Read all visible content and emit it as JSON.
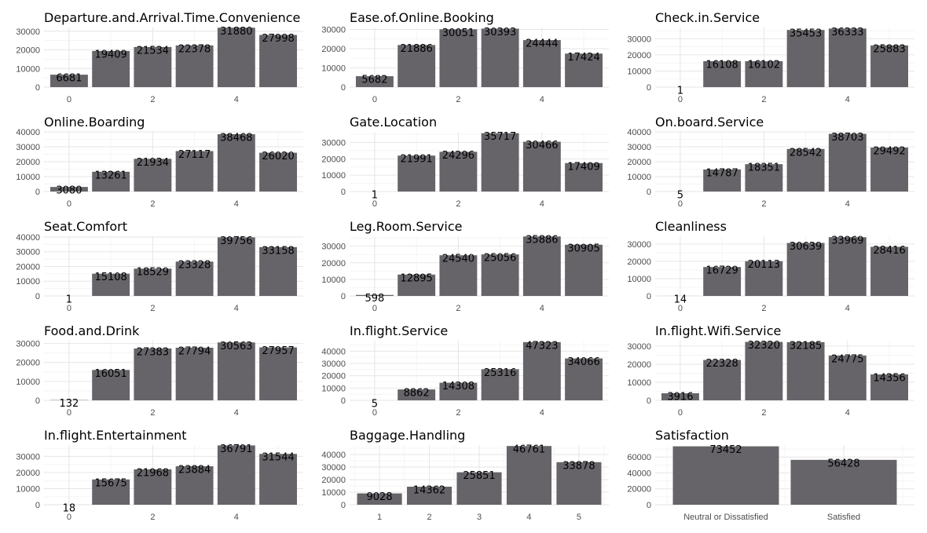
{
  "colors": {
    "bar": "#666469",
    "grid_major": "#e6e6e6",
    "grid_minor": "#f2f2f2",
    "text": "#000000",
    "tick_text": "#4d4d4d"
  },
  "chart_data": [
    {
      "type": "bar",
      "title": "Departure.and.Arrival.Time.Convenience",
      "xlabel": "",
      "ylabel": "",
      "x": [
        0,
        1,
        2,
        3,
        4,
        5
      ],
      "values": [
        6681,
        19409,
        21534,
        22378,
        31880,
        27998
      ],
      "x_ticks": [
        0,
        2,
        4
      ],
      "x_tick_labels": [
        "0",
        "2",
        "4"
      ],
      "xlim": [
        -0.6,
        5.6
      ],
      "y_ticks": [
        0,
        10000,
        20000,
        30000
      ],
      "ylim": [
        0,
        32000
      ],
      "grid": true
    },
    {
      "type": "bar",
      "title": "Ease.of.Online.Booking",
      "xlabel": "",
      "ylabel": "",
      "x": [
        0,
        1,
        2,
        3,
        4,
        5
      ],
      "values": [
        5682,
        21886,
        30051,
        30393,
        24444,
        17424
      ],
      "x_ticks": [
        0,
        2,
        4
      ],
      "x_tick_labels": [
        "0",
        "2",
        "4"
      ],
      "xlim": [
        -0.6,
        5.6
      ],
      "y_ticks": [
        0,
        10000,
        20000,
        30000
      ],
      "ylim": [
        0,
        31000
      ],
      "grid": true
    },
    {
      "type": "bar",
      "title": "Check.in.Service",
      "xlabel": "",
      "ylabel": "",
      "x": [
        0,
        1,
        2,
        3,
        4,
        5
      ],
      "values": [
        1,
        16108,
        16102,
        35453,
        36333,
        25883
      ],
      "x_ticks": [
        0,
        2,
        4
      ],
      "x_tick_labels": [
        "0",
        "2",
        "4"
      ],
      "xlim": [
        -0.6,
        5.6
      ],
      "y_ticks": [
        0,
        10000,
        20000,
        30000
      ],
      "ylim": [
        0,
        37000
      ],
      "grid": true
    },
    {
      "type": "bar",
      "title": "Online.Boarding",
      "xlabel": "",
      "ylabel": "",
      "x": [
        0,
        1,
        2,
        3,
        4,
        5
      ],
      "values": [
        3080,
        13261,
        21934,
        27117,
        38468,
        26020
      ],
      "x_ticks": [
        0,
        2,
        4
      ],
      "x_tick_labels": [
        "0",
        "2",
        "4"
      ],
      "xlim": [
        -0.6,
        5.6
      ],
      "y_ticks": [
        0,
        10000,
        20000,
        30000,
        40000
      ],
      "ylim": [
        0,
        40000
      ],
      "grid": true
    },
    {
      "type": "bar",
      "title": "Gate.Location",
      "xlabel": "",
      "ylabel": "",
      "x": [
        0,
        1,
        2,
        3,
        4,
        5
      ],
      "values": [
        1,
        21991,
        24296,
        35717,
        30466,
        17409
      ],
      "x_ticks": [
        0,
        2,
        4
      ],
      "x_tick_labels": [
        "0",
        "2",
        "4"
      ],
      "xlim": [
        -0.6,
        5.6
      ],
      "y_ticks": [
        0,
        10000,
        20000,
        30000
      ],
      "ylim": [
        0,
        36500
      ],
      "grid": true
    },
    {
      "type": "bar",
      "title": "On.board.Service",
      "xlabel": "",
      "ylabel": "",
      "x": [
        0,
        1,
        2,
        3,
        4,
        5
      ],
      "values": [
        5,
        14787,
        18351,
        28542,
        38703,
        29492
      ],
      "x_ticks": [
        0,
        2,
        4
      ],
      "x_tick_labels": [
        "0",
        "2",
        "4"
      ],
      "xlim": [
        -0.6,
        5.6
      ],
      "y_ticks": [
        0,
        10000,
        20000,
        30000,
        40000
      ],
      "ylim": [
        0,
        40000
      ],
      "grid": true
    },
    {
      "type": "bar",
      "title": "Seat.Comfort",
      "xlabel": "",
      "ylabel": "",
      "x": [
        0,
        1,
        2,
        3,
        4,
        5
      ],
      "values": [
        1,
        15108,
        18529,
        23328,
        39756,
        33158
      ],
      "x_ticks": [
        0,
        2,
        4
      ],
      "x_tick_labels": [
        "0",
        "2",
        "4"
      ],
      "xlim": [
        -0.6,
        5.6
      ],
      "y_ticks": [
        0,
        10000,
        20000,
        30000,
        40000
      ],
      "ylim": [
        0,
        40500
      ],
      "grid": true
    },
    {
      "type": "bar",
      "title": "Leg.Room.Service",
      "xlabel": "",
      "ylabel": "",
      "x": [
        0,
        1,
        2,
        3,
        4,
        5
      ],
      "values": [
        598,
        12895,
        24540,
        25056,
        35886,
        30905
      ],
      "x_ticks": [
        0,
        2,
        4
      ],
      "x_tick_labels": [
        "0",
        "2",
        "4"
      ],
      "xlim": [
        -0.6,
        5.6
      ],
      "y_ticks": [
        0,
        10000,
        20000,
        30000
      ],
      "ylim": [
        0,
        36000
      ],
      "grid": true
    },
    {
      "type": "bar",
      "title": "Cleanliness",
      "xlabel": "",
      "ylabel": "",
      "x": [
        0,
        1,
        2,
        3,
        4,
        5
      ],
      "values": [
        14,
        16729,
        20113,
        30639,
        33969,
        28416
      ],
      "x_ticks": [
        0,
        2,
        4
      ],
      "x_tick_labels": [
        "0",
        "2",
        "4"
      ],
      "xlim": [
        -0.6,
        5.6
      ],
      "y_ticks": [
        0,
        10000,
        20000,
        30000
      ],
      "ylim": [
        0,
        34500
      ],
      "grid": true
    },
    {
      "type": "bar",
      "title": "Food.and.Drink",
      "xlabel": "",
      "ylabel": "",
      "x": [
        0,
        1,
        2,
        3,
        4,
        5
      ],
      "values": [
        132,
        16051,
        27383,
        27794,
        30563,
        27957
      ],
      "x_ticks": [
        0,
        2,
        4
      ],
      "x_tick_labels": [
        "0",
        "2",
        "4"
      ],
      "xlim": [
        -0.6,
        5.6
      ],
      "y_ticks": [
        0,
        10000,
        20000,
        30000
      ],
      "ylim": [
        0,
        31500
      ],
      "grid": true
    },
    {
      "type": "bar",
      "title": "In.flight.Service",
      "xlabel": "",
      "ylabel": "",
      "x": [
        0,
        1,
        2,
        3,
        4,
        5
      ],
      "values": [
        5,
        8862,
        14308,
        25316,
        47323,
        34066
      ],
      "x_ticks": [
        0,
        2,
        4
      ],
      "x_tick_labels": [
        "0",
        "2",
        "4"
      ],
      "xlim": [
        -0.6,
        5.6
      ],
      "y_ticks": [
        0,
        10000,
        20000,
        30000,
        40000
      ],
      "ylim": [
        0,
        48500
      ],
      "grid": true
    },
    {
      "type": "bar",
      "title": "In.flight.Wifi.Service",
      "xlabel": "",
      "ylabel": "",
      "x": [
        0,
        1,
        2,
        3,
        4,
        5
      ],
      "values": [
        3916,
        22328,
        32320,
        32185,
        24775,
        14356
      ],
      "x_ticks": [
        0,
        2,
        4
      ],
      "x_tick_labels": [
        "0",
        "2",
        "4"
      ],
      "xlim": [
        -0.6,
        5.6
      ],
      "y_ticks": [
        0,
        10000,
        20000,
        30000
      ],
      "ylim": [
        0,
        33000
      ],
      "grid": true
    },
    {
      "type": "bar",
      "title": "In.flight.Entertainment",
      "xlabel": "",
      "ylabel": "",
      "x": [
        0,
        1,
        2,
        3,
        4,
        5
      ],
      "values": [
        18,
        15675,
        21968,
        23884,
        36791,
        31544
      ],
      "x_ticks": [
        0,
        2,
        4
      ],
      "x_tick_labels": [
        "0",
        "2",
        "4"
      ],
      "xlim": [
        -0.6,
        5.6
      ],
      "y_ticks": [
        0,
        10000,
        20000,
        30000
      ],
      "ylim": [
        0,
        37000
      ],
      "grid": true
    },
    {
      "type": "bar",
      "title": "Baggage.Handling",
      "xlabel": "",
      "ylabel": "",
      "x": [
        1,
        2,
        3,
        4,
        5
      ],
      "values": [
        9028,
        14362,
        25851,
        46761,
        33878
      ],
      "x_ticks": [
        1,
        2,
        3,
        4,
        5
      ],
      "x_tick_labels": [
        "1",
        "2",
        "3",
        "4",
        "5"
      ],
      "xlim": [
        0.4,
        5.6
      ],
      "y_ticks": [
        0,
        10000,
        20000,
        30000,
        40000
      ],
      "ylim": [
        0,
        47500
      ],
      "grid": true
    },
    {
      "type": "bar",
      "title": "Satisfaction",
      "xlabel": "",
      "ylabel": "",
      "categories": [
        "Neutral or Dissatisfied",
        "Satisfied"
      ],
      "x": [
        1,
        2
      ],
      "values": [
        73452,
        56428
      ],
      "x_ticks": [
        1,
        2
      ],
      "x_tick_labels": [
        "Neutral or Dissatisfied",
        "Satisfied"
      ],
      "xlim": [
        0.4,
        2.6
      ],
      "y_ticks": [
        0,
        20000,
        40000,
        60000
      ],
      "ylim": [
        0,
        75000
      ],
      "grid": true
    }
  ]
}
